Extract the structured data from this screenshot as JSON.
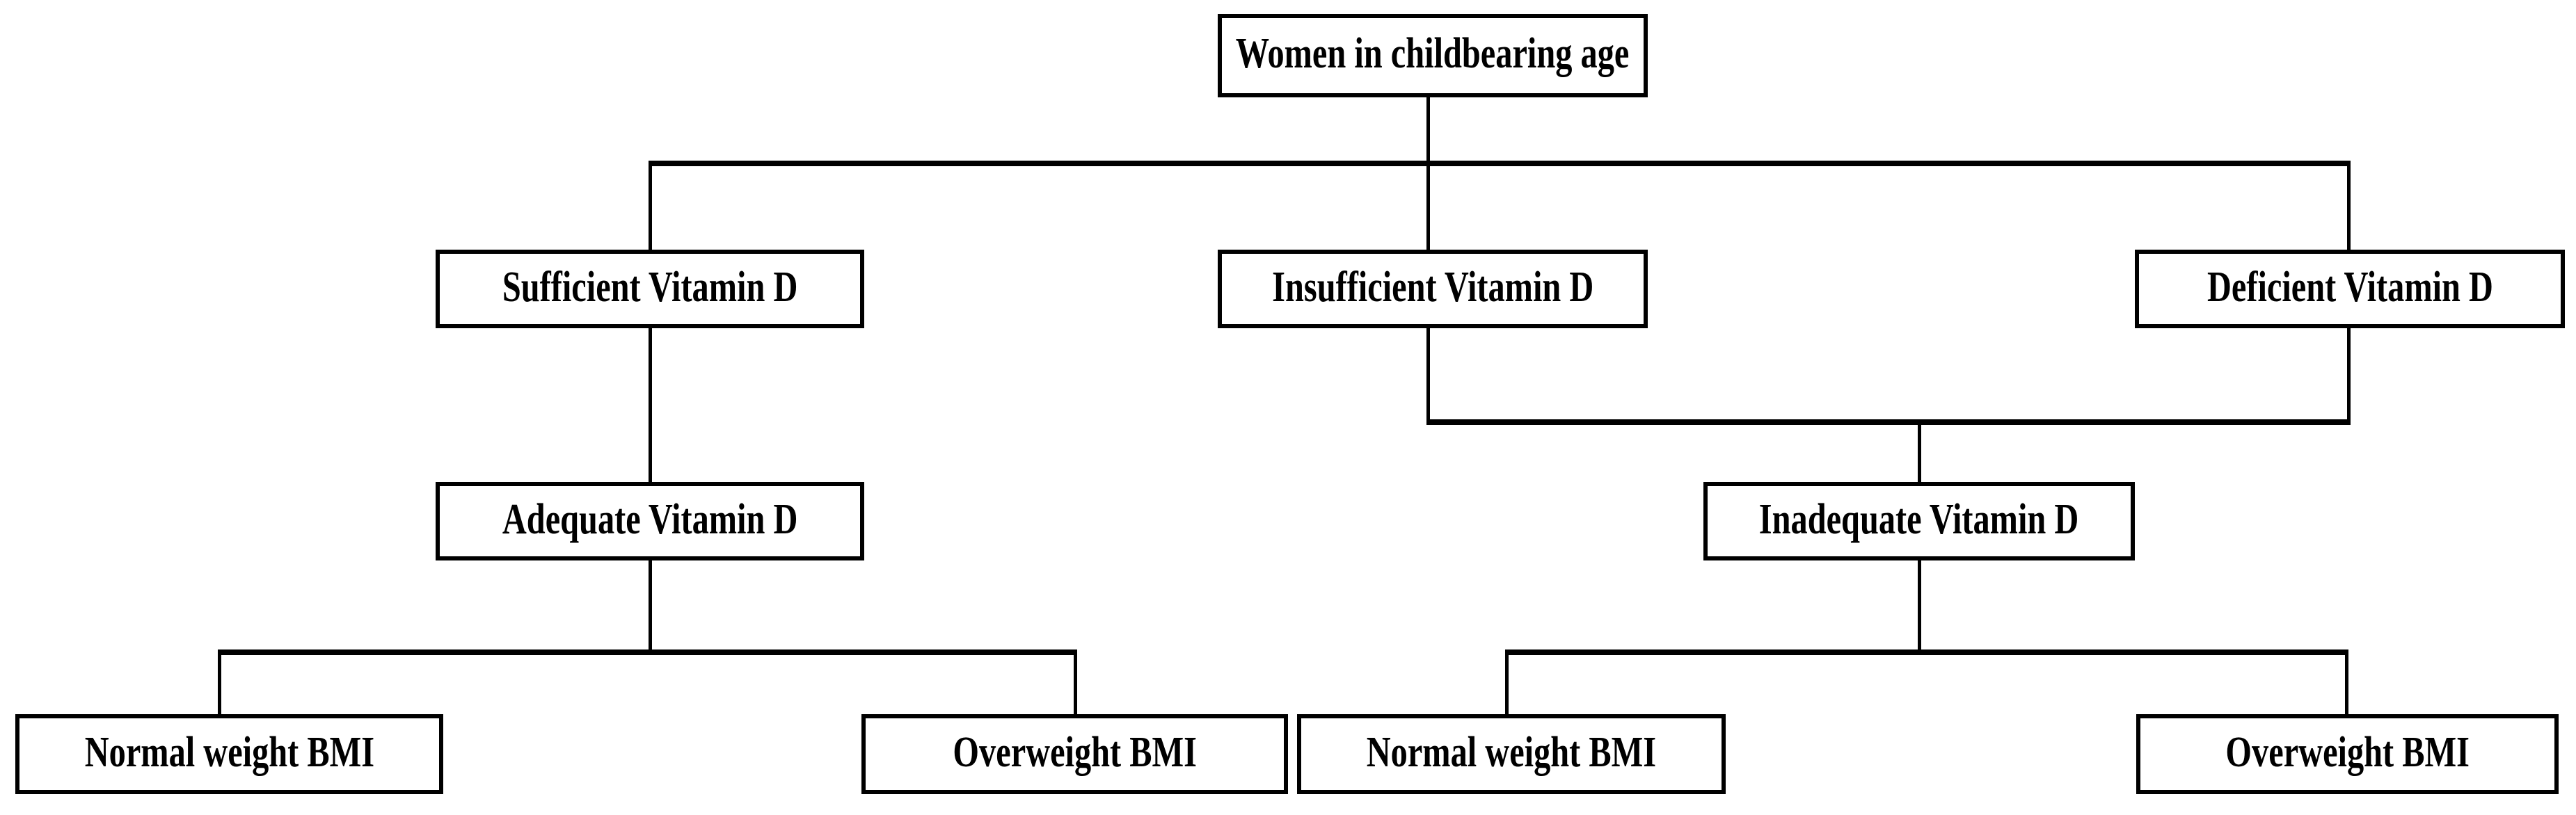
{
  "diagram": {
    "type": "flowchart",
    "colors": {
      "background": "#ffffff",
      "box_fill": "#ffffff",
      "box_border": "#000000",
      "line": "#000000",
      "text": "#000000"
    },
    "nodes": {
      "women": {
        "label": "Women in childbearing age",
        "level": 1
      },
      "sufficient": {
        "label": "Sufficient Vitamin D",
        "level": 2
      },
      "insufficient": {
        "label": "Insufficient Vitamin D",
        "level": 2
      },
      "deficient": {
        "label": "Deficient Vitamin D",
        "level": 2
      },
      "adequate": {
        "label": "Adequate Vitamin D",
        "level": 3
      },
      "inadequate": {
        "label": "Inadequate Vitamin D",
        "level": 3
      },
      "normal_left": {
        "label": "Normal weight BMI",
        "level": 4
      },
      "overweight_left": {
        "label": "Overweight BMI",
        "level": 4
      },
      "normal_right": {
        "label": "Normal weight BMI",
        "level": 4
      },
      "overweight_right": {
        "label": "Overweight BMI",
        "level": 4
      }
    },
    "edges": [
      {
        "from": "women",
        "to": "sufficient"
      },
      {
        "from": "women",
        "to": "insufficient"
      },
      {
        "from": "women",
        "to": "deficient"
      },
      {
        "from": "sufficient",
        "to": "adequate"
      },
      {
        "from": "insufficient",
        "to": "inadequate"
      },
      {
        "from": "deficient",
        "to": "inadequate"
      },
      {
        "from": "adequate",
        "to": "normal_left"
      },
      {
        "from": "adequate",
        "to": "overweight_left"
      },
      {
        "from": "inadequate",
        "to": "normal_right"
      },
      {
        "from": "inadequate",
        "to": "overweight_right"
      }
    ]
  }
}
